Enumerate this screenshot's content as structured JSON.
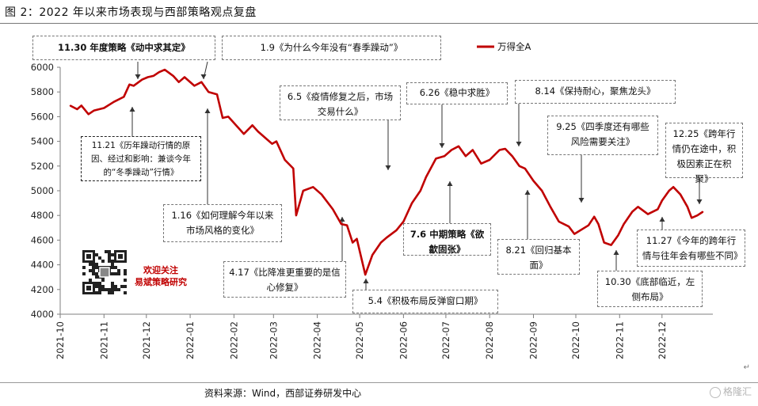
{
  "figure_title": "图 2：2022 年以来市场表现与西部策略观点复盘",
  "source_note": "资料来源：Wind，西部证券研发中心",
  "watermark": "格隆汇",
  "return_mark": "↵",
  "promo_lines": [
    "欢迎关注",
    "易斌策略研究"
  ],
  "colors": {
    "series": "#c00000",
    "axis": "#7f7f7f",
    "note_border": "#777777"
  },
  "annotations": [
    {
      "id": "a1",
      "text": "11.30 年度策略《动中求其定》",
      "bold": true
    },
    {
      "id": "a2",
      "text": "1.9《为什么今年没有“春季躁动”》"
    },
    {
      "id": "a3",
      "text": "11.21《历年躁动行情的原因、经过和影响：兼谈今年的“冬季躁动”行情》"
    },
    {
      "id": "a4",
      "text": "1.16《如何理解今年以来市场风格的变化》"
    },
    {
      "id": "a5",
      "text": "6.5《疫情修复之后，市场交易什么》"
    },
    {
      "id": "a6",
      "text": "4.17《比降准更重要的是信心修复》"
    },
    {
      "id": "a7",
      "text": "5.4《积极布局反弹窗口期》"
    },
    {
      "id": "a8",
      "text": "6.26《稳中求胜》"
    },
    {
      "id": "a9",
      "text": "7.6 中期策略《欲歙固张》",
      "bold": true
    },
    {
      "id": "a10",
      "text": "8.14《保持耐心，聚焦龙头》"
    },
    {
      "id": "a11",
      "text": "8.21《回归基本面》"
    },
    {
      "id": "a12",
      "text": "9.25《四季度还有哪些风险需要关注》"
    },
    {
      "id": "a13",
      "text": "10.30《底部临近，左侧布局》"
    },
    {
      "id": "a14",
      "text": "11.27《今年的跨年行情与往年会有哪些不同》"
    },
    {
      "id": "a15",
      "text": "12.25《跨年行情仍在途中，积极因素正在积聚》"
    }
  ],
  "chart_data": {
    "type": "line",
    "title": "",
    "xlabel": "",
    "ylabel": "",
    "ylim": [
      4000,
      6000
    ],
    "yticks": [
      4000,
      4200,
      4400,
      4600,
      4800,
      5000,
      5200,
      5400,
      5600,
      5800,
      6000
    ],
    "xticks": [
      "2021-10",
      "2021-11",
      "2021-12",
      "2022-01",
      "2022-02",
      "2022-03",
      "2022-04",
      "2022-05",
      "2022-06",
      "2022-07",
      "2022-08",
      "2022-09",
      "2022-10",
      "2022-11",
      "2022-12"
    ],
    "xlim": [
      "2021-10-01",
      "2023-01-06"
    ],
    "legend": {
      "position": "top-right"
    },
    "grid": false,
    "series": [
      {
        "name": "万得全A",
        "x": [
          "2021-10-08",
          "2021-10-13",
          "2021-10-16",
          "2021-10-21",
          "2021-10-25",
          "2021-11-01",
          "2021-11-08",
          "2021-11-15",
          "2021-11-19",
          "2021-11-22",
          "2021-11-28",
          "2021-12-02",
          "2021-12-06",
          "2021-12-10",
          "2021-12-14",
          "2021-12-20",
          "2021-12-24",
          "2021-12-28",
          "2022-01-04",
          "2022-01-09",
          "2022-01-14",
          "2022-01-20",
          "2022-01-24",
          "2022-01-28",
          "2022-02-08",
          "2022-02-14",
          "2022-02-18",
          "2022-02-24",
          "2022-02-28",
          "2022-03-03",
          "2022-03-09",
          "2022-03-15",
          "2022-03-17",
          "2022-03-22",
          "2022-03-29",
          "2022-04-04",
          "2022-04-12",
          "2022-04-18",
          "2022-04-22",
          "2022-04-26",
          "2022-04-29",
          "2022-05-05",
          "2022-05-10",
          "2022-05-16",
          "2022-05-20",
          "2022-05-27",
          "2022-06-01",
          "2022-06-07",
          "2022-06-13",
          "2022-06-17",
          "2022-06-24",
          "2022-06-30",
          "2022-07-05",
          "2022-07-10",
          "2022-07-15",
          "2022-07-20",
          "2022-07-26",
          "2022-08-01",
          "2022-08-08",
          "2022-08-12",
          "2022-08-17",
          "2022-08-22",
          "2022-08-26",
          "2022-09-01",
          "2022-09-07",
          "2022-09-13",
          "2022-09-19",
          "2022-09-26",
          "2022-09-30",
          "2022-10-10",
          "2022-10-14",
          "2022-10-17",
          "2022-10-21",
          "2022-10-26",
          "2022-10-31",
          "2022-11-04",
          "2022-11-10",
          "2022-11-14",
          "2022-11-21",
          "2022-11-28",
          "2022-12-01",
          "2022-12-06",
          "2022-12-09",
          "2022-12-14",
          "2022-12-19",
          "2022-12-22",
          "2022-12-26",
          "2022-12-30"
        ],
        "values": [
          5690,
          5660,
          5690,
          5620,
          5650,
          5670,
          5720,
          5760,
          5860,
          5850,
          5900,
          5920,
          5930,
          5960,
          5980,
          5930,
          5880,
          5920,
          5850,
          5880,
          5800,
          5780,
          5590,
          5600,
          5460,
          5530,
          5480,
          5420,
          5380,
          5400,
          5250,
          5180,
          4800,
          5000,
          5030,
          4970,
          4850,
          4730,
          4720,
          4580,
          4610,
          4320,
          4480,
          4580,
          4620,
          4680,
          4750,
          4900,
          5000,
          5110,
          5260,
          5280,
          5330,
          5360,
          5280,
          5330,
          5220,
          5250,
          5330,
          5340,
          5280,
          5200,
          5180,
          5080,
          5000,
          4870,
          4750,
          4710,
          4650,
          4720,
          4790,
          4730,
          4580,
          4560,
          4640,
          4730,
          4830,
          4870,
          4810,
          4850,
          4920,
          5000,
          5030,
          4970,
          4870,
          4780,
          4800,
          4830
        ]
      }
    ]
  }
}
